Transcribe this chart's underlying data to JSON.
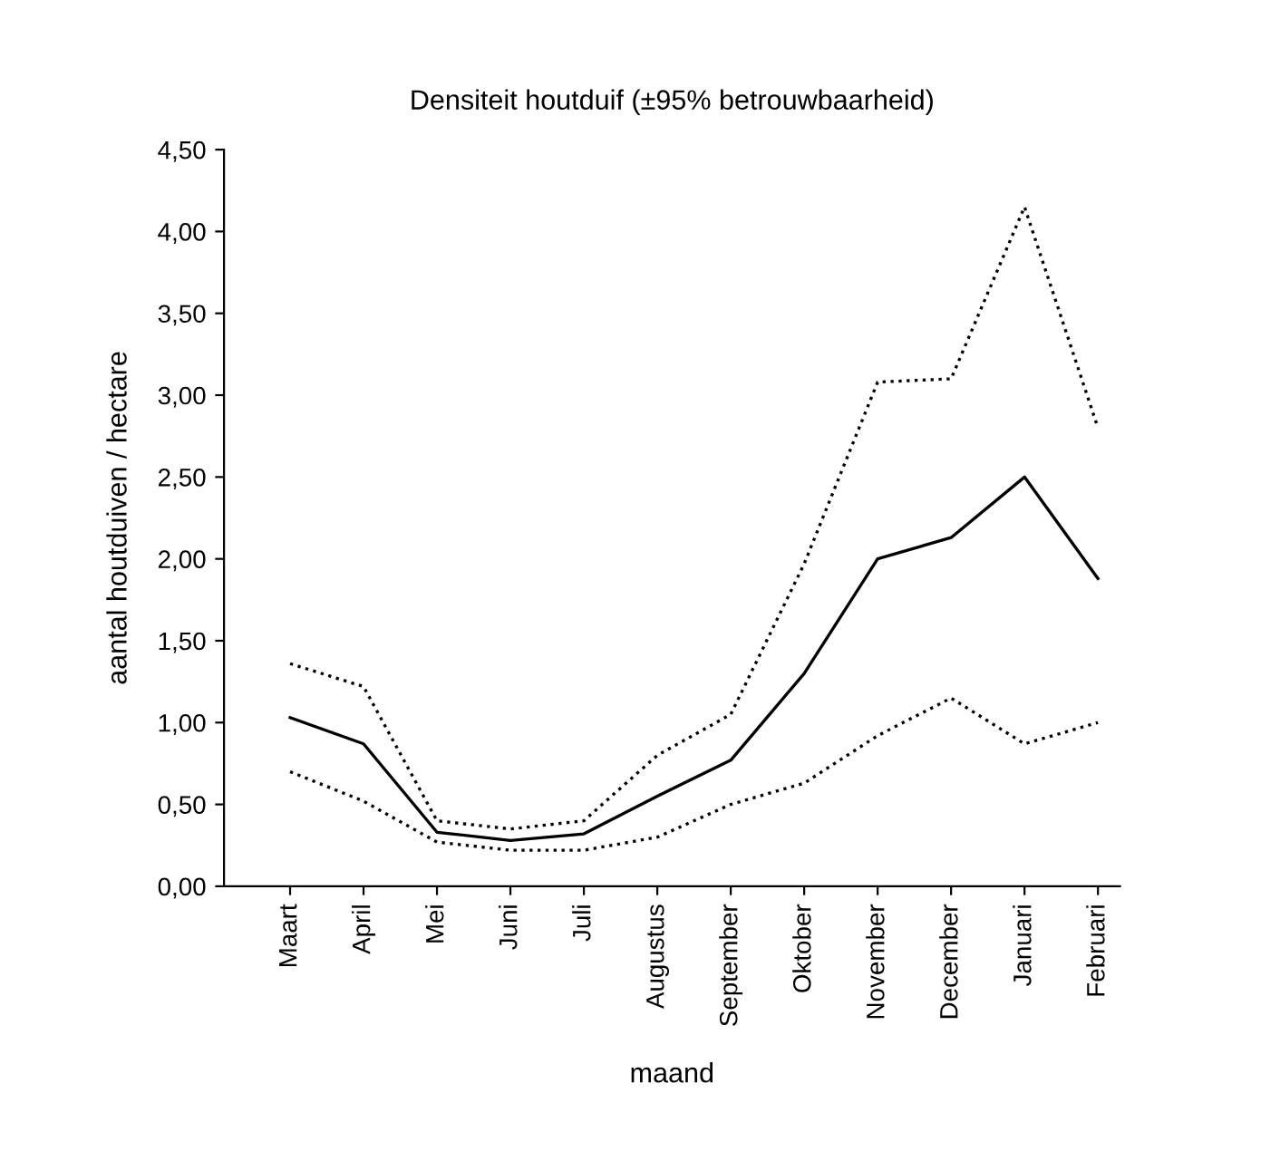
{
  "chart_data": {
    "type": "line",
    "title": "Densiteit houtduif (±95% betrouwbaarheid)",
    "xlabel": "maand",
    "ylabel": "aantal houtduiven / hectare",
    "categories": [
      "Maart",
      "April",
      "Mei",
      "Juni",
      "Juli",
      "Augustus",
      "September",
      "Oktober",
      "November",
      "December",
      "Januari",
      "Februari"
    ],
    "series": [
      {
        "color": "#000000",
        "line_style": "solid",
        "values": [
          1.03,
          0.87,
          0.33,
          0.28,
          0.32,
          0.55,
          0.77,
          1.3,
          2.0,
          2.13,
          2.5,
          1.88
        ]
      },
      {
        "color": "#000000",
        "line_style": "dotted",
        "values": [
          1.36,
          1.22,
          0.4,
          0.35,
          0.4,
          0.8,
          1.05,
          1.97,
          3.08,
          3.1,
          4.15,
          2.8
        ]
      },
      {
        "color": "#000000",
        "line_style": "dotted",
        "values": [
          0.7,
          0.52,
          0.27,
          0.22,
          0.22,
          0.3,
          0.5,
          0.63,
          0.92,
          1.15,
          0.87,
          1.0
        ]
      }
    ],
    "ylim": [
      0,
      4.5
    ],
    "yticks": [
      {
        "value": 0,
        "label": "0,00"
      },
      {
        "value": 0.5,
        "label": "0,50"
      },
      {
        "value": 1,
        "label": "1,00"
      },
      {
        "value": 1.5,
        "label": "1,50"
      },
      {
        "value": 2,
        "label": "2,00"
      },
      {
        "value": 2.5,
        "label": "2,50"
      },
      {
        "value": 3,
        "label": "3,00"
      },
      {
        "value": 3.5,
        "label": "3,50"
      },
      {
        "value": 4,
        "label": "4,00"
      },
      {
        "value": 4.5,
        "label": "4,50"
      }
    ],
    "grid": false,
    "legend": false,
    "marker": "none"
  }
}
